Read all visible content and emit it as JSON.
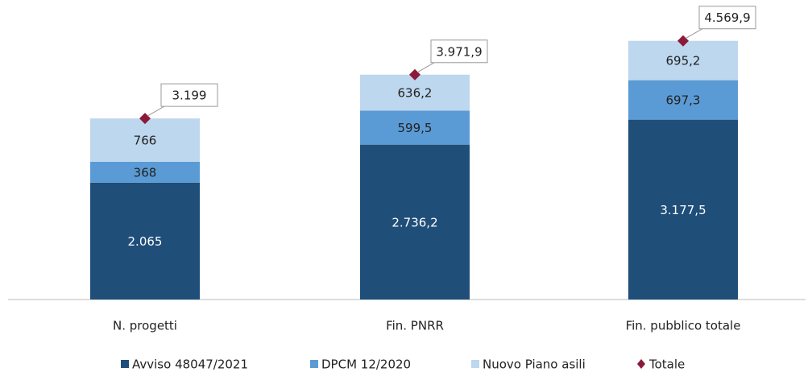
{
  "chart_data": {
    "type": "stacked_bar",
    "categories": [
      "N. progetti",
      "Fin. PNRR",
      "Fin. pubblico totale"
    ],
    "ylim": [
      0,
      5000
    ],
    "series": [
      {
        "name": "Avviso 48047/2021",
        "color": "#1f4e79",
        "values": [
          2065,
          2736.2,
          3177.5
        ],
        "value_labels": [
          "2.065",
          "2.736,2",
          "3.177,5"
        ]
      },
      {
        "name": "DPCM 12/2020",
        "color": "#5b9bd5",
        "values": [
          368,
          599.5,
          697.3
        ],
        "value_labels": [
          "368",
          "599,5",
          "697,3"
        ]
      },
      {
        "name": "Nuovo Piano asili",
        "color": "#bdd7ee",
        "values": [
          766,
          636.2,
          695.2
        ],
        "value_labels": [
          "766",
          "636,2",
          "695,2"
        ]
      }
    ],
    "total": {
      "name": "Totale",
      "color": "#8b1a3a",
      "values": [
        3199,
        3971.9,
        4569.9
      ],
      "value_labels": [
        "3.199",
        "3.971,9",
        "4.569,9"
      ]
    }
  }
}
